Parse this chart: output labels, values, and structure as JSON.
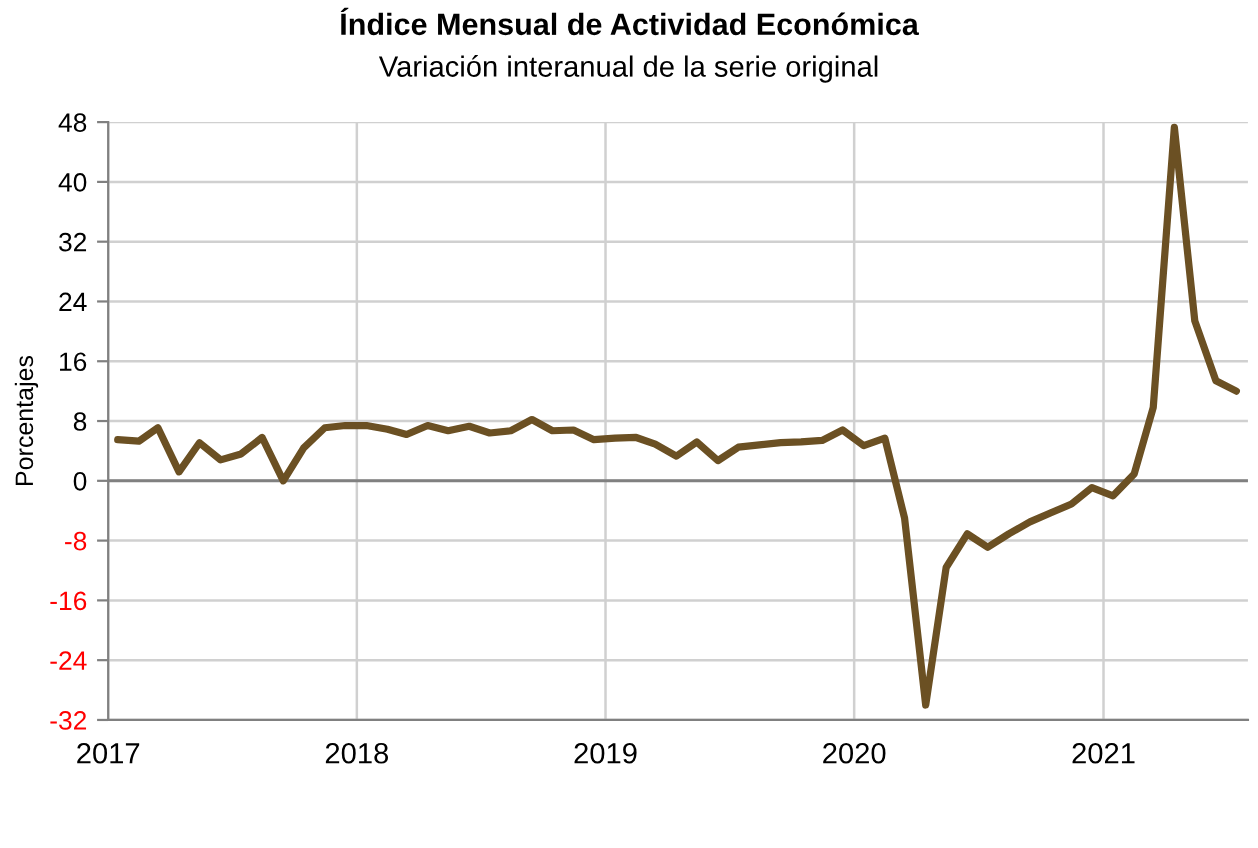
{
  "chart_data": {
    "type": "line",
    "title": "Índice Mensual de Actividad Económica",
    "subtitle": "Variación interanual de la serie original",
    "ylabel": "Porcentajes",
    "x": [
      "2017-01-15",
      "2017-02-15",
      "2017-03-15",
      "2017-04-15",
      "2017-05-15",
      "2017-06-15",
      "2017-07-15",
      "2017-08-15",
      "2017-09-15",
      "2017-10-15",
      "2017-11-15",
      "2017-12-15",
      "2018-01-15",
      "2018-02-15",
      "2018-03-15",
      "2018-04-15",
      "2018-05-15",
      "2018-06-15",
      "2018-07-15",
      "2018-08-15",
      "2018-09-15",
      "2018-10-15",
      "2018-11-15",
      "2018-12-15",
      "2019-01-15",
      "2019-02-15",
      "2019-03-15",
      "2019-04-15",
      "2019-05-15",
      "2019-06-15",
      "2019-07-15",
      "2019-08-15",
      "2019-09-15",
      "2019-10-15",
      "2019-11-15",
      "2019-12-15",
      "2020-01-15",
      "2020-02-15",
      "2020-03-15",
      "2020-04-15",
      "2020-05-15",
      "2020-06-15",
      "2020-07-15",
      "2020-08-15",
      "2020-09-15",
      "2020-10-15",
      "2020-11-15",
      "2020-12-15",
      "2021-01-15",
      "2021-02-15",
      "2021-03-15",
      "2021-04-15",
      "2021-05-15",
      "2021-06-15",
      "2021-07-15"
    ],
    "series": [
      {
        "color": "#6b5023",
        "values": [
          5.5,
          5.3,
          7.1,
          1.2,
          5.1,
          2.8,
          3.6,
          5.8,
          0,
          4.4,
          7.1,
          7.4,
          7.4,
          6.9,
          6.2,
          7.4,
          6.7,
          7.3,
          6.4,
          6.7,
          8.2,
          6.7,
          6.8,
          5.5,
          5.7,
          5.8,
          4.9,
          3.3,
          5.2,
          2.7,
          4.5,
          4.8,
          5.1,
          5.2,
          5.4,
          6.8,
          4.7,
          5.7,
          -5,
          -30,
          -11.6,
          -7.1,
          -8.9,
          -7.1,
          -5.5,
          -4.3,
          -3.1,
          -0.9,
          -2,
          0.9,
          9.8,
          47.3,
          21.4,
          13.4,
          12
        ]
      }
    ],
    "xlim": [
      "2017-01-01",
      "2021-08-01"
    ],
    "xticks": [
      {
        "value": "2017-01-01",
        "label": "2017"
      },
      {
        "value": "2018-01-01",
        "label": "2018"
      },
      {
        "value": "2019-01-01",
        "label": "2019"
      },
      {
        "value": "2020-01-01",
        "label": "2020"
      },
      {
        "value": "2021-01-01",
        "label": "2021"
      }
    ],
    "ylim": [
      -32,
      48
    ],
    "yticks": [
      -32,
      -24,
      -16,
      -8,
      0,
      8,
      16,
      24,
      32,
      40,
      48
    ],
    "ref_lines": [
      {
        "axis": "y",
        "value": 0,
        "color": "#808080"
      }
    ],
    "grid": true,
    "marker": "none",
    "line_style": "solid"
  }
}
